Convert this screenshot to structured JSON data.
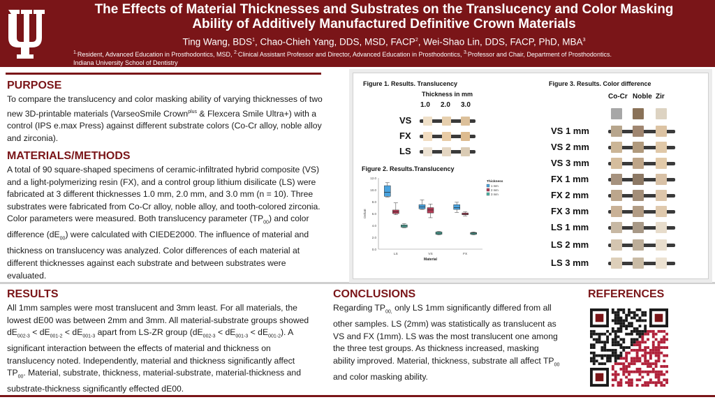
{
  "header": {
    "title_line1": "The Effects of Material Thicknesses and Substrates on the Translucency and Color Masking",
    "title_line2": "Ability of Additively Manufactured Definitive Crown Materials",
    "author1": "Ting Wang, BDS",
    "author1_sup": "1",
    "author2": ", Chao-Chieh Yang, DDS, MSD, FACP",
    "author2_sup": "2",
    "author3": ", Wei-Shao Lin, DDS, FACP, PhD, MBA",
    "author3_sup": "3",
    "affil1_sup": "1.",
    "affil1": "Resident, Advanced Education in Prosthodontics, MSD, ",
    "affil2_sup": "2.",
    "affil2": "Clinical Assistant Professor and Director, Advanced Education in Prosthodontics, ",
    "affil3_sup": "3.",
    "affil3": "Professor and Chair, Department of Prosthodontics.",
    "affil_line2": "Indiana University School of Dentistry",
    "brand_color": "#7a1518"
  },
  "purpose": {
    "heading": "PURPOSE",
    "text_a": "To compare the translucency and color masking ability of varying thicknesses of two new 3D-printable materials (VarseoSmile Crown",
    "text_sup": "plus",
    "text_b": " & Flexcera Smile Ultra+) with a control (IPS e.max Press) against different substrate colors (Co-Cr alloy, noble alloy and zirconia)."
  },
  "methods": {
    "heading": "MATERIALS/METHODS",
    "text_a": "A total of 90 square-shaped specimens of ceramic-infiltrated hybrid composite (VS) and a light-polymerizing resin (FX), and a control group lithium disilicate (LS) were fabricated at 3 different thicknesses 1.0 mm, 2.0 mm, and 3.0 mm (n = 10). Three substrates were fabricated from Co-Cr alloy, noble alloy, and tooth-colored zirconia. Color parameters were measured. Both translucency parameter (TP",
    "sub1": "00",
    "text_b": ") and color difference (dE",
    "sub2": "00",
    "text_c": ") were calculated with CIEDE2000. The influence of material and thickness on translucency was analyzed. Color differences of each material at different thicknesses against each substrate and between substrates were evaluated."
  },
  "results": {
    "heading": "RESULTS",
    "t1": "All 1mm samples were most translucent and 3mm least. For all materials, the lowest dE00 was between 2mm and 3mm. All material-substrate groups showed dE",
    "s1": "002-3",
    "t2": " < dE",
    "s2": "001-2",
    "t3": " < dE",
    "s3": "001-3",
    "t4": " apart from LS-ZR group (dE",
    "s4": "002-3",
    "t5": " < dE",
    "s5": "001-3",
    "t6": " < dE",
    "s6": "001-2",
    "t7": "). A significant interaction between the effects of material and thickness on translucency noted. Independently, material and thickness significantly affect TP",
    "s7": "00",
    "t8": ". Material, substrate, thickness, material-substrate, material-thickness and substrate-thickness significantly effected dE00."
  },
  "conclusions": {
    "heading": "CONCLUSIONS",
    "t1": "Regarding TP",
    "s1": "00,",
    "t2": " only LS 1mm significantly differed from all other samples. LS (2mm) was statistically as translucent as VS and FX (1mm). LS was the most translucent one among the three test groups. As thickness increased, masking ability improved. Material, thickness, substrate all affect TP",
    "s2": "00",
    "t3": " and color masking ability."
  },
  "references": {
    "heading": "REFERENCES"
  },
  "figure1": {
    "title": "Figure 1. Results. Translucency",
    "subtitle": "Thickness in mm",
    "thicknesses": [
      "1.0",
      "2.0",
      "3.0"
    ],
    "rows": [
      "VS",
      "FX",
      "LS"
    ]
  },
  "figure2": {
    "title": "Figure 2. Results.Translucency"
  },
  "figure3": {
    "title": "Figure 3. Results. Color difference",
    "columns": [
      "Co-Cr",
      "Noble",
      "Zir"
    ],
    "rows": [
      "VS 1 mm",
      "VS 2 mm",
      "VS 3 mm",
      "FX 1 mm",
      "FX 2 mm",
      "FX 3 mm",
      "LS 1 mm",
      "LS 2 mm",
      "LS 3 mm"
    ]
  },
  "chart_data": {
    "type": "box",
    "title": "Figure 2. Results.Translucency",
    "xlabel": "Material",
    "ylabel": "DeltaE",
    "categories": [
      "LS",
      "VS",
      "FX"
    ],
    "ylim": [
      0,
      12
    ],
    "yticks": [
      "0.0",
      "2.0",
      "4.0",
      "6.0",
      "8.0",
      "10.0",
      "12.0"
    ],
    "legend_title": "Thickness",
    "legend_position": "top-right",
    "series": [
      {
        "name": "1 mm",
        "color": "#4aa3df",
        "boxes": [
          {
            "min": 8.8,
            "q1": 8.9,
            "median": 9.6,
            "q3": 10.7,
            "max": 11.2
          },
          {
            "min": 6.7,
            "q1": 6.8,
            "median": 7.1,
            "q3": 7.5,
            "max": 8.3
          },
          {
            "min": 6.2,
            "q1": 6.7,
            "median": 7.0,
            "q3": 7.5,
            "max": 7.9
          }
        ]
      },
      {
        "name": "2 mm",
        "color": "#b33b56",
        "boxes": [
          {
            "min": 5.8,
            "q1": 6.0,
            "median": 6.3,
            "q3": 6.6,
            "max": 7.8
          },
          {
            "min": 5.3,
            "q1": 6.1,
            "median": 6.6,
            "q3": 7.0,
            "max": 7.6
          },
          {
            "min": 5.6,
            "q1": 5.8,
            "median": 5.9,
            "q3": 6.1,
            "max": 6.3
          }
        ]
      },
      {
        "name": "3 mm",
        "color": "#4db3a5",
        "boxes": [
          {
            "min": 3.6,
            "q1": 3.7,
            "median": 3.9,
            "q3": 4.1,
            "max": 4.3
          },
          {
            "min": 2.4,
            "q1": 2.5,
            "median": 2.7,
            "q3": 2.9,
            "max": 3.0
          },
          {
            "min": 2.4,
            "q1": 2.5,
            "median": 2.7,
            "q3": 2.8,
            "max": 2.9
          }
        ]
      }
    ]
  }
}
